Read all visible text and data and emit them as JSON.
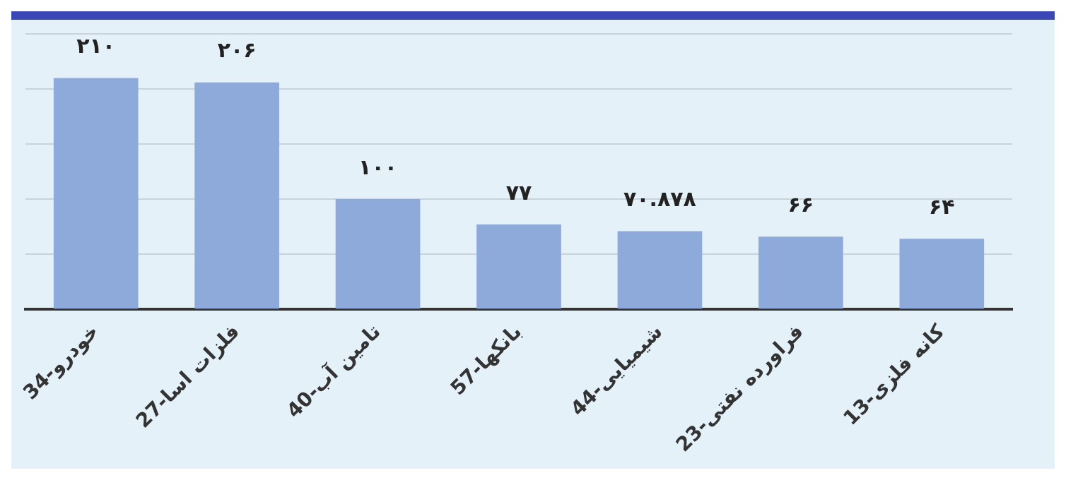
{
  "chart_data": {
    "type": "bar",
    "categories": [
      "34-خودرو",
      "27-فلزات اسا",
      "40-تامین آب",
      "57-بانکها",
      "44-شیمیایی",
      "23-فراورده نفتی",
      "13-کانه فلزی"
    ],
    "values": [
      210,
      206,
      100,
      77,
      70.878,
      66,
      64
    ],
    "value_labels": [
      "۲۱۰",
      "۲۰۶",
      "۱۰۰",
      "۷۷",
      "۷۰.۸۷۸",
      "۶۶",
      "۶۴"
    ],
    "color": "#8eaadb",
    "ylim": [
      0,
      250
    ],
    "yticks": [
      {
        "value": 0,
        "label": null
      },
      {
        "value": 50,
        "label": null
      },
      {
        "value": 100,
        "label": null
      },
      {
        "value": 150,
        "label": null
      },
      {
        "value": 200,
        "label": null
      },
      {
        "value": 250,
        "label": null
      }
    ],
    "grid": "y",
    "tick_labels": "x"
  }
}
